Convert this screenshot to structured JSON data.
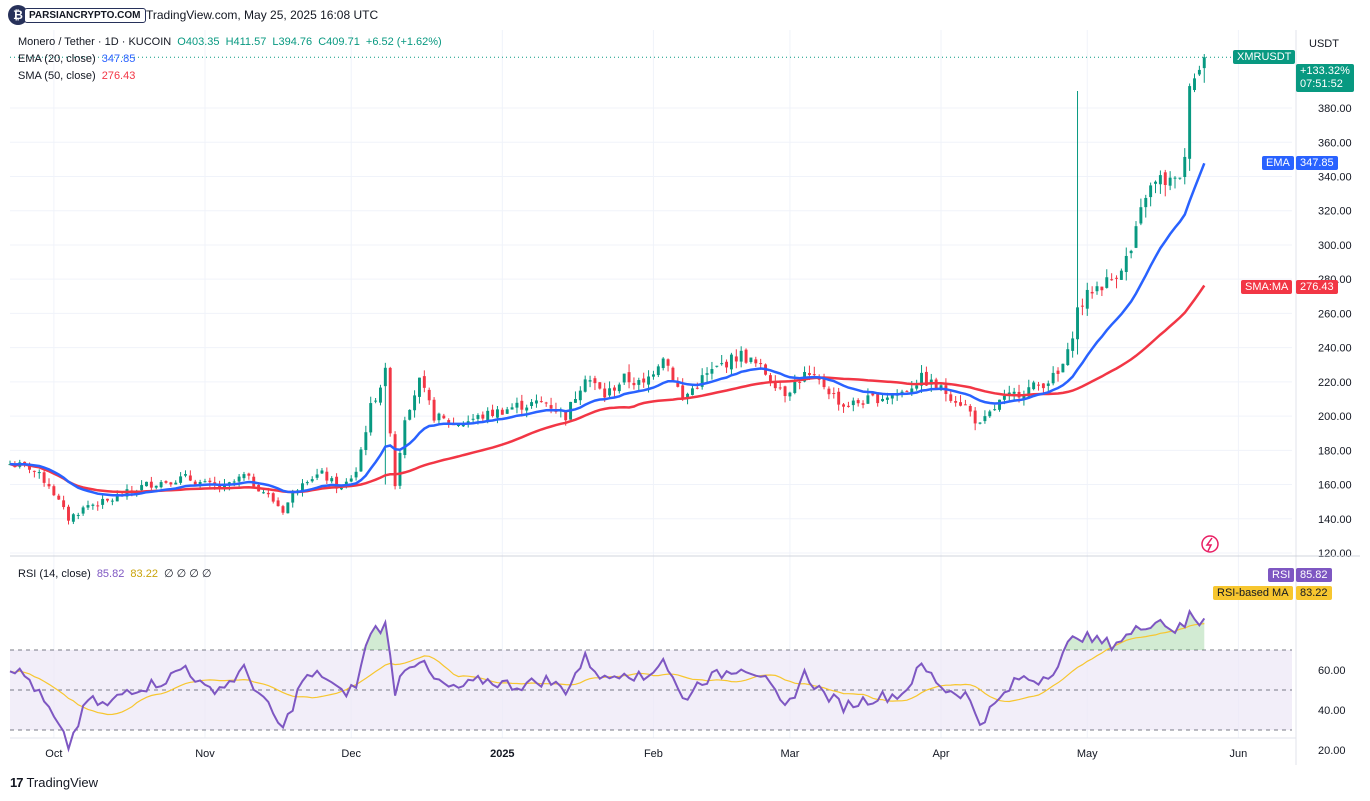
{
  "publisher": {
    "badge_text": "PARSIANCRYPTO.COM",
    "published_line": "TradingView.com, May 25, 2025 16:08 UTC"
  },
  "legend": {
    "pair": "Monero / Tether · 1D · KUCOIN",
    "open": "O403.35",
    "high": "H411.57",
    "low": "L394.76",
    "close": "C409.71",
    "change": "+6.52 (+1.62%)",
    "ema_label": "EMA (20, close)",
    "ema_value": "347.85",
    "sma_label": "SMA (50, close)",
    "sma_value": "276.43",
    "rsi_label": "RSI (14, close)",
    "rsi_value": "85.82",
    "rsi_ma_value": "83.22",
    "rsi_extra": "∅ ∅ ∅ ∅"
  },
  "price_axis": {
    "currency": "USDT",
    "ticks": [
      "120.00",
      "140.00",
      "160.00",
      "180.00",
      "200.00",
      "220.00",
      "240.00",
      "260.00",
      "280.00",
      "300.00",
      "320.00",
      "340.00",
      "360.00",
      "380.00"
    ]
  },
  "rsi_axis": {
    "ticks": [
      "20.00",
      "40.00",
      "60.00"
    ]
  },
  "time_axis": {
    "labels": [
      "Oct",
      "Nov",
      "Dec",
      "2025",
      "Feb",
      "Mar",
      "Apr",
      "May",
      "Jun"
    ]
  },
  "tags": {
    "symbol": "XMRUSDT",
    "last_change": "+133.32%",
    "countdown": "07:51:52",
    "ema_tag": "EMA",
    "ema_tag_value": "347.85",
    "sma_tag": "SMA:MA",
    "sma_tag_value": "276.43",
    "rsi_tag": "RSI",
    "rsi_tag_value": "85.82",
    "rsi_ma_tag": "RSI-based MA",
    "rsi_ma_tag_value": "83.22"
  },
  "footer": {
    "brand": "TradingView"
  },
  "colors": {
    "up": "#089981",
    "down": "#f23645",
    "ema": "#2962ff",
    "sma": "#f23645",
    "rsi": "#7e57c2",
    "rsi_ma": "#f7c62f",
    "rsi_band": "#ede7f6"
  },
  "chart_data": [
    {
      "type": "candlestick",
      "title": "Monero / Tether · 1D · KUCOIN",
      "ylim": [
        120,
        411
      ],
      "x_range": [
        "2024-09-22",
        "2025-06-12"
      ],
      "anchors": {
        "close_series": [
          [
            "2024-09-22",
            172
          ],
          [
            "2024-09-26",
            170
          ],
          [
            "2024-09-30",
            160
          ],
          [
            "2024-10-04",
            140
          ],
          [
            "2024-10-08",
            148
          ],
          [
            "2024-10-12",
            150
          ],
          [
            "2024-10-16",
            155
          ],
          [
            "2024-10-20",
            160
          ],
          [
            "2024-10-24",
            162
          ],
          [
            "2024-10-28",
            164
          ],
          [
            "2024-11-01",
            160
          ],
          [
            "2024-11-05",
            158
          ],
          [
            "2024-11-09",
            165
          ],
          [
            "2024-11-13",
            156
          ],
          [
            "2024-11-17",
            145
          ],
          [
            "2024-11-21",
            163
          ],
          [
            "2024-11-25",
            166
          ],
          [
            "2024-11-29",
            157
          ],
          [
            "2024-12-02",
            168
          ],
          [
            "2024-12-05",
            205
          ],
          [
            "2024-12-08",
            225
          ],
          [
            "2024-12-10",
            160
          ],
          [
            "2024-12-12",
            200
          ],
          [
            "2024-12-15",
            220
          ],
          [
            "2024-12-18",
            200
          ],
          [
            "2024-12-22",
            195
          ],
          [
            "2024-12-28",
            200
          ],
          [
            "2025-01-04",
            206
          ],
          [
            "2025-01-10",
            208
          ],
          [
            "2025-01-14",
            200
          ],
          [
            "2025-01-18",
            224
          ],
          [
            "2025-01-22",
            212
          ],
          [
            "2025-01-26",
            222
          ],
          [
            "2025-01-30",
            218
          ],
          [
            "2025-02-03",
            236
          ],
          [
            "2025-02-07",
            210
          ],
          [
            "2025-02-11",
            222
          ],
          [
            "2025-02-15",
            230
          ],
          [
            "2025-02-19",
            236
          ],
          [
            "2025-02-23",
            228
          ],
          [
            "2025-02-28",
            214
          ],
          [
            "2025-03-04",
            224
          ],
          [
            "2025-03-08",
            218
          ],
          [
            "2025-03-12",
            206
          ],
          [
            "2025-03-18",
            210
          ],
          [
            "2025-03-24",
            214
          ],
          [
            "2025-03-28",
            222
          ],
          [
            "2025-04-02",
            214
          ],
          [
            "2025-04-06",
            206
          ],
          [
            "2025-04-09",
            194
          ],
          [
            "2025-04-13",
            208
          ],
          [
            "2025-04-17",
            214
          ],
          [
            "2025-04-21",
            218
          ],
          [
            "2025-04-25",
            224
          ],
          [
            "2025-04-27",
            236
          ],
          [
            "2025-04-29",
            262
          ],
          [
            "2025-05-02",
            274
          ],
          [
            "2025-05-06",
            280
          ],
          [
            "2025-05-10",
            296
          ],
          [
            "2025-05-13",
            330
          ],
          [
            "2025-05-16",
            338
          ],
          [
            "2025-05-19",
            336
          ],
          [
            "2025-05-21",
            348
          ],
          [
            "2025-05-22",
            398
          ],
          [
            "2025-05-24",
            402
          ],
          [
            "2025-05-25",
            409.71
          ]
        ],
        "wick_spikes": [
          [
            "2024-12-08",
            228,
            160
          ],
          [
            "2025-04-29",
            390,
            236
          ]
        ]
      },
      "overlays": [
        {
          "name": "EMA (20, close)",
          "last": 347.85
        },
        {
          "name": "SMA (50, close)",
          "last": 276.43
        }
      ]
    },
    {
      "type": "line",
      "title": "RSI (14, close)",
      "ylim": [
        20,
        90
      ],
      "bands": [
        30,
        50,
        70
      ],
      "series": [
        {
          "name": "RSI (14, close)",
          "last": 85.82,
          "anchors": [
            [
              "2024-09-22",
              62
            ],
            [
              "2024-09-26",
              55
            ],
            [
              "2024-09-30",
              40
            ],
            [
              "2024-10-04",
              22
            ],
            [
              "2024-10-08",
              45
            ],
            [
              "2024-10-12",
              42
            ],
            [
              "2024-10-16",
              50
            ],
            [
              "2024-10-20",
              52
            ],
            [
              "2024-10-24",
              55
            ],
            [
              "2024-10-28",
              62
            ],
            [
              "2024-11-01",
              50
            ],
            [
              "2024-11-05",
              52
            ],
            [
              "2024-11-09",
              60
            ],
            [
              "2024-11-13",
              45
            ],
            [
              "2024-11-17",
              30
            ],
            [
              "2024-11-21",
              55
            ],
            [
              "2024-11-25",
              58
            ],
            [
              "2024-11-29",
              48
            ],
            [
              "2024-12-02",
              52
            ],
            [
              "2024-12-05",
              80
            ],
            [
              "2024-12-08",
              82
            ],
            [
              "2024-12-10",
              50
            ],
            [
              "2024-12-12",
              62
            ],
            [
              "2024-12-15",
              65
            ],
            [
              "2024-12-18",
              55
            ],
            [
              "2024-12-22",
              50
            ],
            [
              "2024-12-28",
              55
            ],
            [
              "2025-01-04",
              52
            ],
            [
              "2025-01-10",
              55
            ],
            [
              "2025-01-14",
              50
            ],
            [
              "2025-01-18",
              66
            ],
            [
              "2025-01-22",
              55
            ],
            [
              "2025-01-26",
              60
            ],
            [
              "2025-01-30",
              55
            ],
            [
              "2025-02-03",
              66
            ],
            [
              "2025-02-07",
              45
            ],
            [
              "2025-02-11",
              55
            ],
            [
              "2025-02-15",
              58
            ],
            [
              "2025-02-19",
              62
            ],
            [
              "2025-02-23",
              58
            ],
            [
              "2025-02-28",
              40
            ],
            [
              "2025-03-04",
              58
            ],
            [
              "2025-03-08",
              48
            ],
            [
              "2025-03-12",
              42
            ],
            [
              "2025-03-18",
              46
            ],
            [
              "2025-03-24",
              48
            ],
            [
              "2025-03-28",
              62
            ],
            [
              "2025-04-02",
              50
            ],
            [
              "2025-04-06",
              48
            ],
            [
              "2025-04-09",
              34
            ],
            [
              "2025-04-13",
              45
            ],
            [
              "2025-04-17",
              56
            ],
            [
              "2025-04-21",
              55
            ],
            [
              "2025-04-25",
              62
            ],
            [
              "2025-04-27",
              72
            ],
            [
              "2025-04-29",
              78
            ],
            [
              "2025-05-02",
              75
            ],
            [
              "2025-05-06",
              73
            ],
            [
              "2025-05-10",
              78
            ],
            [
              "2025-05-13",
              83
            ],
            [
              "2025-05-16",
              85
            ],
            [
              "2025-05-19",
              80
            ],
            [
              "2025-05-21",
              82
            ],
            [
              "2025-05-22",
              88
            ],
            [
              "2025-05-24",
              84
            ],
            [
              "2025-05-25",
              85.82
            ]
          ]
        },
        {
          "name": "RSI-based MA",
          "last": 83.22
        }
      ]
    }
  ]
}
